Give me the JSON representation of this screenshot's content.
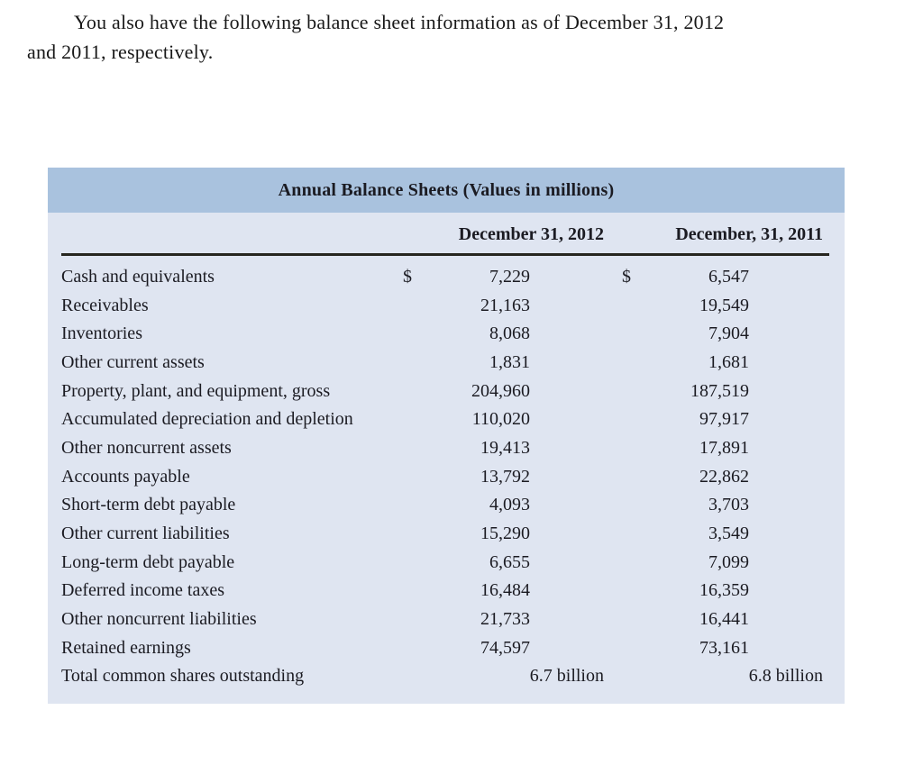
{
  "intro": {
    "line1": "You also have the following balance sheet information as of December 31, 2012",
    "line2": "and 2011, respectively."
  },
  "table": {
    "title": "Annual Balance Sheets (Values in millions)",
    "columns": {
      "col_2012": "December 31, 2012",
      "col_2011": "December, 31, 2011"
    },
    "rows": [
      {
        "label": "Cash and equivalents",
        "d2012": "$",
        "v2012": "7,229",
        "d2011": "$",
        "v2011": "6,547"
      },
      {
        "label": "Receivables",
        "v2012": "21,163",
        "v2011": "19,549"
      },
      {
        "label": "Inventories",
        "v2012": "8,068",
        "v2011": "7,904"
      },
      {
        "label": "Other current assets",
        "v2012": "1,831",
        "v2011": "1,681"
      },
      {
        "label": "Property, plant, and equipment, gross",
        "v2012": "204,960",
        "v2011": "187,519"
      },
      {
        "label": "Accumulated depreciation and depletion",
        "v2012": "110,020",
        "v2011": "97,917"
      },
      {
        "label": "Other noncurrent assets",
        "v2012": "19,413",
        "v2011": "17,891"
      },
      {
        "label": "Accounts payable",
        "v2012": "13,792",
        "v2011": "22,862"
      },
      {
        "label": "Short-term debt payable",
        "v2012": "4,093",
        "v2011": "3,703"
      },
      {
        "label": "Other current liabilities",
        "v2012": "15,290",
        "v2011": "3,549"
      },
      {
        "label": "Long-term debt payable",
        "v2012": "6,655",
        "v2011": "7,099"
      },
      {
        "label": "Deferred income taxes",
        "v2012": "16,484",
        "v2011": "16,359"
      },
      {
        "label": "Other noncurrent liabilities",
        "v2012": "21,733",
        "v2011": "16,441"
      },
      {
        "label": "Retained earnings",
        "v2012": "74,597",
        "v2011": "73,161"
      },
      {
        "label": "Total common shares outstanding",
        "v2012": "6.7 billion",
        "v2011": "6.8 billion",
        "full": true
      }
    ]
  },
  "colors": {
    "title_band_bg": "#a9c2de",
    "table_body_bg": "#dfe5f1",
    "rule": "#26261f",
    "text": "#1b1b22"
  }
}
